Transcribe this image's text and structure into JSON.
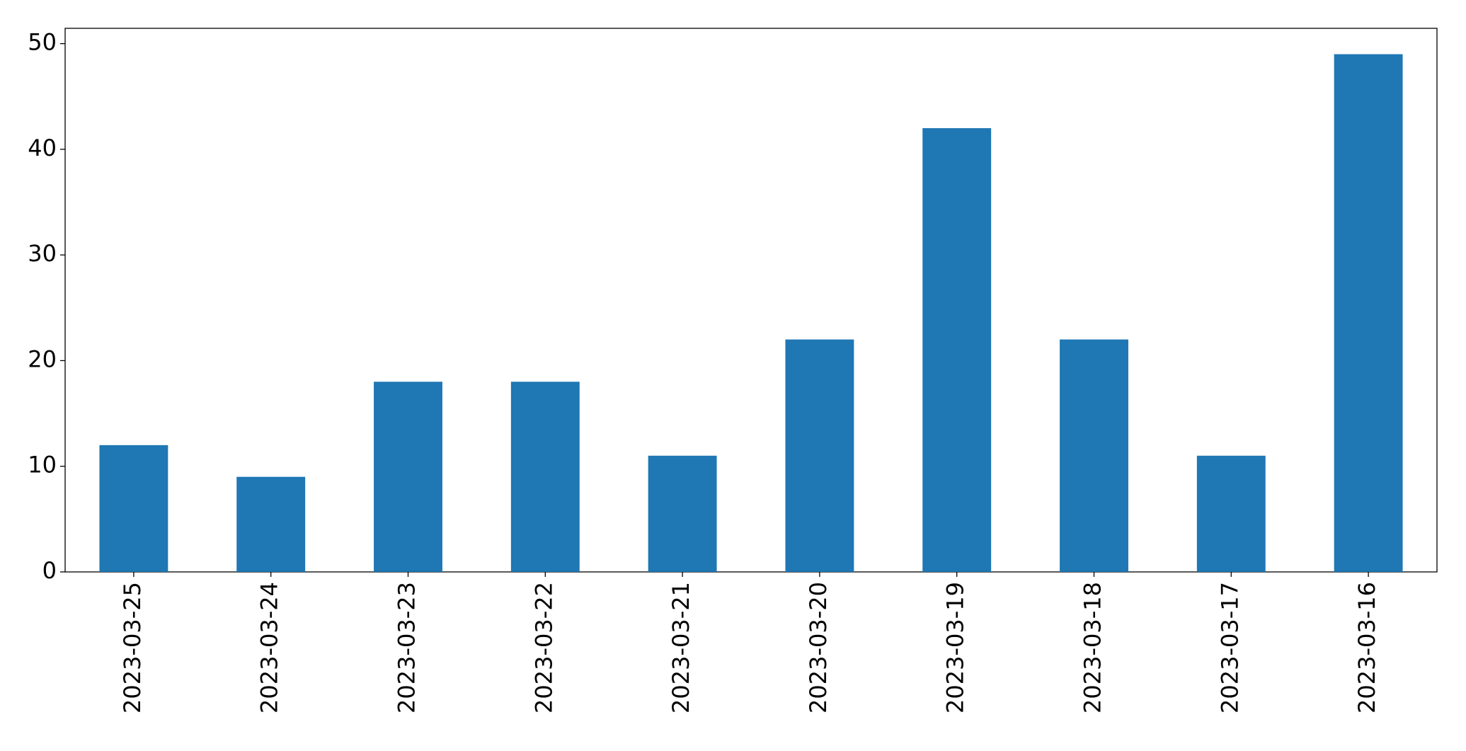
{
  "chart_data": {
    "type": "bar",
    "categories": [
      "2023-03-25",
      "2023-03-24",
      "2023-03-23",
      "2023-03-22",
      "2023-03-21",
      "2023-03-20",
      "2023-03-19",
      "2023-03-18",
      "2023-03-17",
      "2023-03-16"
    ],
    "values": [
      12,
      9,
      18,
      18,
      11,
      22,
      42,
      22,
      11,
      49
    ],
    "color": "#1f77b4",
    "ylim": [
      0,
      51.45
    ],
    "yticks": [
      0,
      10,
      20,
      30,
      40,
      50
    ],
    "grid": false
  }
}
